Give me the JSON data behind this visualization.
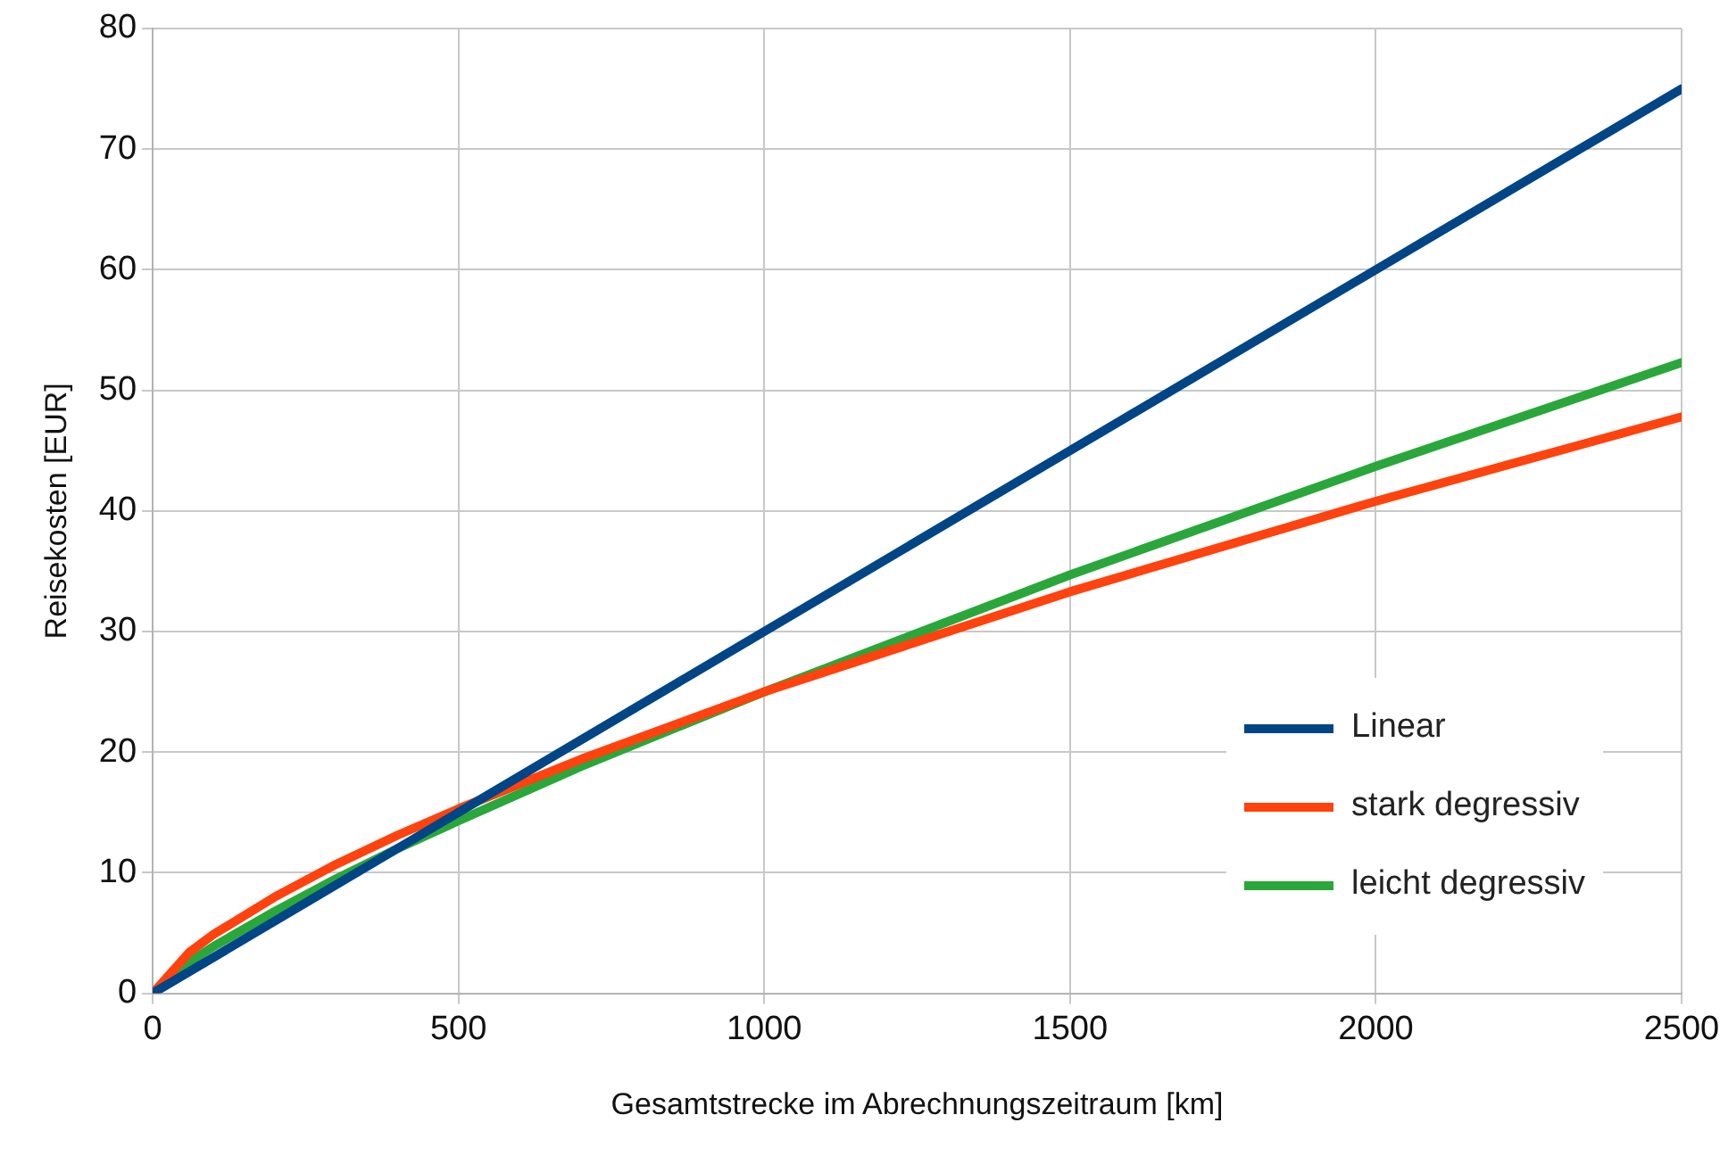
{
  "chart_data": {
    "type": "line",
    "xlabel": "Gesamtstrecke im Abrechnungszeitraum [km]",
    "ylabel": "Reisekosten [EUR]",
    "xlim": [
      0,
      2500
    ],
    "xticks": [
      0,
      500,
      1000,
      1500,
      2000,
      2500
    ],
    "ylim": [
      0,
      80
    ],
    "yticks": [
      0,
      10,
      20,
      30,
      40,
      50,
      60,
      70,
      80
    ],
    "grid": true,
    "legend": "right",
    "marker": "none",
    "line_style": "solid",
    "series": [
      {
        "name": "Linear",
        "color": "#004586",
        "x": [
          0,
          2500
        ],
        "values": [
          0,
          75
        ]
      },
      {
        "name": "stark degressiv",
        "color": "#ff420e",
        "x": [
          0,
          60,
          100,
          200,
          300,
          400,
          500,
          700,
          1000,
          1500,
          2000,
          2500
        ],
        "values": [
          0,
          3.4,
          4.9,
          8.0,
          10.7,
          13.1,
          15.3,
          19.4,
          25,
          33.3,
          40.8,
          47.8
        ]
      },
      {
        "name": "leicht degressiv",
        "color": "#2aa73a",
        "x": [
          0,
          60,
          100,
          200,
          300,
          400,
          500,
          700,
          1000,
          1500,
          2000,
          2500
        ],
        "values": [
          0,
          2.6,
          3.9,
          6.8,
          9.5,
          12.0,
          14.3,
          18.8,
          25,
          34.7,
          43.7,
          52.3
        ]
      }
    ]
  }
}
